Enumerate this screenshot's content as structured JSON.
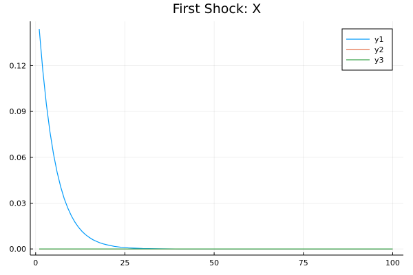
{
  "chart_data": {
    "type": "line",
    "title": "First Shock: X",
    "xlabel": "",
    "ylabel": "",
    "xlim": [
      -1.5,
      103
    ],
    "ylim": [
      -0.004,
      0.149
    ],
    "xticks": [
      0,
      25,
      50,
      75,
      100
    ],
    "xtick_labels": [
      "0",
      "25",
      "50",
      "75",
      "100"
    ],
    "yticks": [
      0.0,
      0.03,
      0.06,
      0.09,
      0.12
    ],
    "ytick_labels": [
      "0.00",
      "0.03",
      "0.06",
      "0.09",
      "0.12"
    ],
    "grid": true,
    "legend_position": "top-right",
    "series": [
      {
        "name": "y1",
        "color": "#009AFA",
        "x": [
          1,
          2,
          3,
          4,
          5,
          6,
          7,
          8,
          9,
          10,
          11,
          12,
          13,
          14,
          15,
          16,
          17,
          18,
          19,
          20,
          22,
          24,
          26,
          28,
          30,
          35,
          40,
          50,
          60,
          70,
          80,
          90,
          100
        ],
        "y": [
          0.144,
          0.117,
          0.0948,
          0.0768,
          0.0622,
          0.0504,
          0.0408,
          0.033,
          0.0268,
          0.0217,
          0.0176,
          0.0142,
          0.0115,
          0.0093,
          0.0076,
          0.0061,
          0.005,
          0.004,
          0.0033,
          0.0027,
          0.0017,
          0.0011,
          0.0007,
          0.0005,
          0.0003,
          0.0001,
          0.0,
          0.0,
          0.0,
          0.0,
          0.0,
          0.0,
          0.0
        ]
      },
      {
        "name": "y2",
        "color": "#E36F47",
        "x": [
          1,
          100
        ],
        "y": [
          0.0,
          0.0
        ]
      },
      {
        "name": "y3",
        "color": "#3EA44E",
        "x": [
          1,
          100
        ],
        "y": [
          0.0,
          0.0
        ]
      }
    ]
  }
}
